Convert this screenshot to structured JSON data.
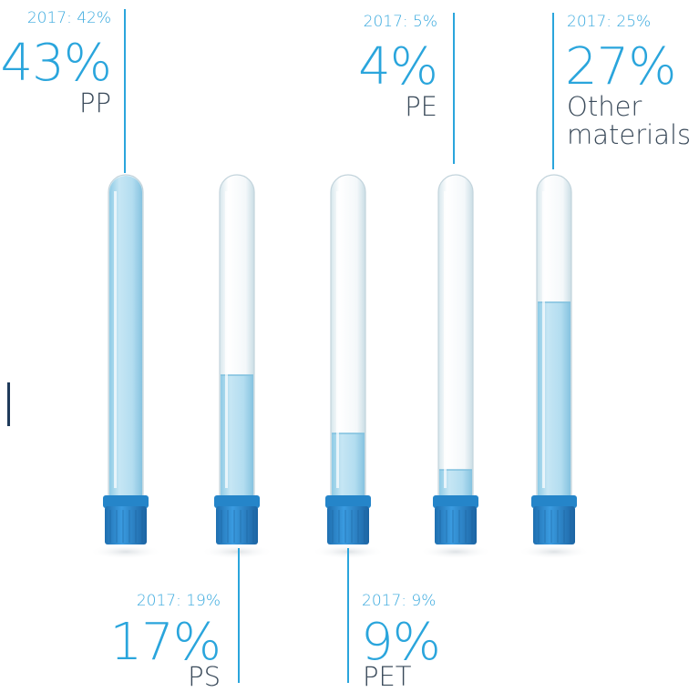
{
  "chart_data": {
    "type": "bar",
    "categories": [
      "PP",
      "PS",
      "PET",
      "PE",
      "Other materials"
    ],
    "series": [
      {
        "name": "",
        "values": [
          43,
          17,
          9,
          4,
          27
        ]
      }
    ],
    "previous_year_labels": [
      "2017: 42%",
      "2017: 19%",
      "2017: 9%",
      "2017: 5%",
      "2017: 25%"
    ],
    "previous_values": [
      42,
      19,
      9,
      5,
      25
    ],
    "value_labels": [
      "43%",
      "17%",
      "9%",
      "4%",
      "27%"
    ],
    "material_labels": [
      "PP",
      "PS",
      "PET",
      "PE",
      "Other\nmaterials"
    ],
    "unit": "%"
  },
  "colors": {
    "accent": "#2aa5dc",
    "liquid": "#b9dff0",
    "cap": "#2f8fd3",
    "cap_dark": "#1f6fb0",
    "glass": "#e8f2f6",
    "marker": "#1f3a5a"
  }
}
